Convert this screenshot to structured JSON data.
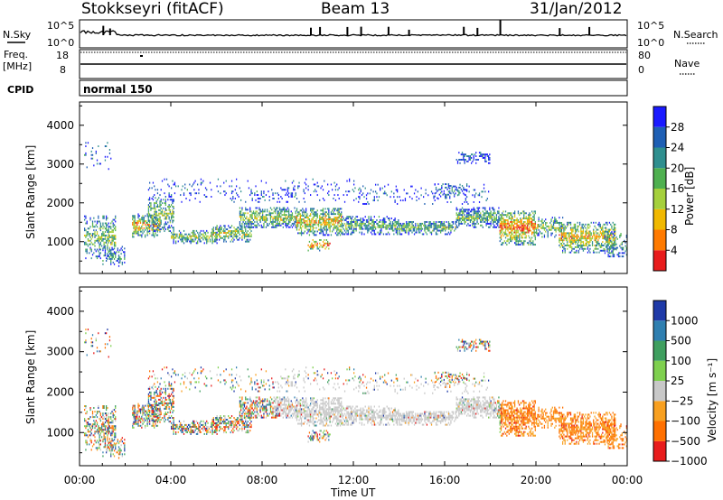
{
  "header": {
    "station": "Stokkseyri (fitACF)",
    "beam": "Beam 13",
    "date": "31/Jan/2012"
  },
  "chart_data": [
    {
      "type": "line",
      "name": "noise-panel",
      "left_label": "N.Sky",
      "right_label": "N.Search",
      "left_ticks": [
        "10^5",
        "10^0"
      ],
      "right_ticks": [
        "10^5",
        "10^0"
      ],
      "x": [
        "00:00",
        "04:00",
        "08:00",
        "12:00",
        "16:00",
        "20:00",
        "00:00"
      ]
    },
    {
      "type": "line",
      "name": "frequency-panel",
      "left_label": "Freq.",
      "left_unit": "[MHz]",
      "right_label": "Nave",
      "left_ticks": [
        "18",
        "8"
      ],
      "right_ticks": [
        "80",
        "0"
      ]
    },
    {
      "type": "table",
      "name": "cpid-panel",
      "label": "CPID",
      "mode": "normal 150"
    },
    {
      "type": "heatmap",
      "name": "power",
      "ylabel": "Slant Range [km]",
      "yticks": [
        1000,
        2000,
        3000,
        4000
      ],
      "ylim": [
        180,
        4600
      ],
      "xlim_hours": [
        0,
        24
      ],
      "colorbar_label": "Power [dB]",
      "colorbar_ticks": [
        "4",
        "8",
        "12",
        "16",
        "20",
        "24",
        "28"
      ],
      "colorbar_colors": [
        "#1a1aff",
        "#1e5fb4",
        "#2f8f8f",
        "#4fb050",
        "#a5d03c",
        "#f0b800",
        "#ff7a00",
        "#e81c1c"
      ]
    },
    {
      "type": "heatmap",
      "name": "velocity",
      "ylabel": "Slant Range [km]",
      "yticks": [
        1000,
        2000,
        3000,
        4000
      ],
      "ylim": [
        180,
        4600
      ],
      "xlim_hours": [
        0,
        24
      ],
      "xticks": [
        "00:00",
        "04:00",
        "08:00",
        "12:00",
        "16:00",
        "20:00",
        "00:00"
      ],
      "xlabel": "Time UT",
      "colorbar_label": "Velocity [m s⁻¹]",
      "colorbar_ticks": [
        "1000",
        "500",
        "100",
        "25",
        "−25",
        "−100",
        "−500",
        "−1000"
      ],
      "colorbar_colors": [
        "#1f3aa8",
        "#2f7fb0",
        "#3f9f5f",
        "#7fd04f",
        "#c8c8c8",
        "#f8a020",
        "#ff7000",
        "#e81c1c"
      ]
    }
  ],
  "colors": {
    "ground_scatter": "#c8c8c8",
    "frame": "#000000"
  }
}
